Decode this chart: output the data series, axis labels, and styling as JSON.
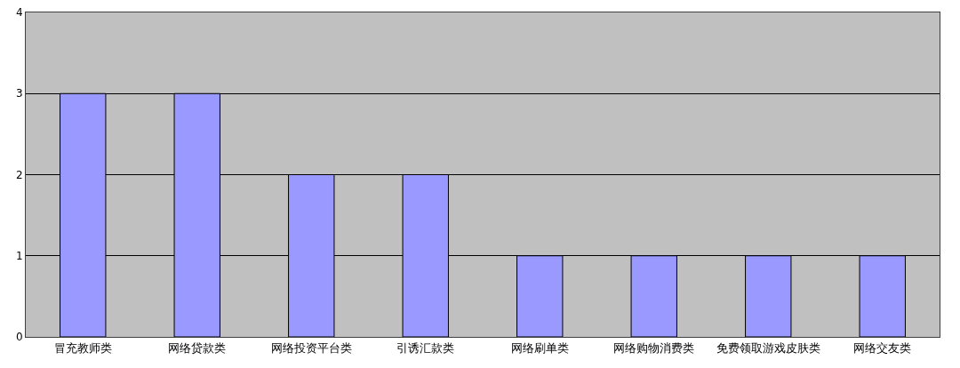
{
  "chart_data": {
    "type": "bar",
    "categories": [
      "冒充教师类",
      "网络贷款类",
      "网络投资平台类",
      "引诱汇款类",
      "网络刷单类",
      "网络购物消费类",
      "免费领取游戏皮肤类",
      "网络交友类"
    ],
    "values": [
      3,
      3,
      2,
      2,
      1,
      1,
      1,
      1
    ],
    "color": "#9999ff",
    "ylim": [
      0,
      4
    ],
    "yticks": [
      0,
      1,
      2,
      3,
      4
    ],
    "grid": "y",
    "legend": false
  }
}
